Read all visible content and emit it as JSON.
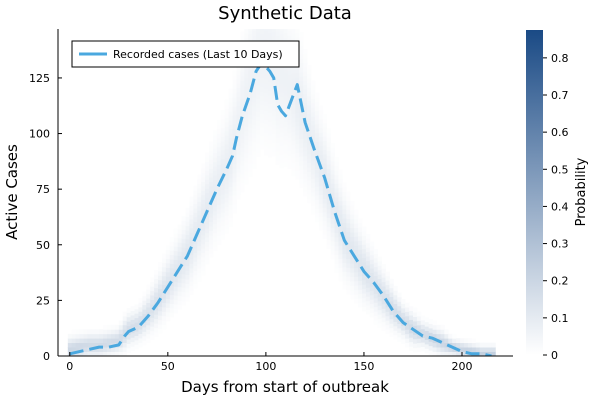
{
  "chart_data": {
    "type": "line",
    "title": "Synthetic Data",
    "xlabel": "Days from start of outbreak",
    "ylabel": "Active Cases",
    "colorbar_label": "Probability",
    "xlim": [
      -6,
      226
    ],
    "ylim": [
      0,
      147
    ],
    "x_ticks": [
      0,
      50,
      100,
      150,
      200
    ],
    "y_ticks": [
      0,
      25,
      50,
      75,
      100,
      125
    ],
    "colorbar_range": [
      0,
      0.875
    ],
    "colorbar_ticks": [
      0,
      0.1,
      0.2,
      0.3,
      0.4,
      0.5,
      0.6,
      0.7,
      0.8
    ],
    "legend_position": "top-left",
    "grid": false,
    "series": [
      {
        "name": "Recorded cases (Last 10 Days)",
        "color": "#4aa8df",
        "style": "dashed",
        "x": [
          0,
          5,
          10,
          15,
          20,
          25,
          28,
          30,
          35,
          40,
          45,
          50,
          55,
          60,
          65,
          70,
          75,
          80,
          83,
          85,
          88,
          90,
          92,
          95,
          98,
          100,
          102,
          104,
          106,
          108,
          110,
          113,
          116,
          120,
          125,
          130,
          135,
          140,
          145,
          150,
          155,
          160,
          165,
          170,
          175,
          180,
          185,
          190,
          195,
          200,
          205,
          210,
          215
        ],
        "values": [
          1,
          2,
          3,
          4,
          4,
          5,
          9,
          11,
          13,
          18,
          24,
          31,
          38,
          45,
          55,
          65,
          75,
          84,
          90,
          98,
          108,
          113,
          118,
          128,
          132,
          130,
          128,
          125,
          113,
          110,
          108,
          115,
          122,
          105,
          92,
          80,
          65,
          52,
          45,
          38,
          33,
          27,
          20,
          15,
          12,
          9,
          8,
          6,
          4,
          2,
          1,
          1,
          0
        ]
      }
    ],
    "heatmap": {
      "name": "Probability",
      "colormap": [
        "#ffffff",
        "#1a4a85"
      ],
      "center_x": [
        0,
        5,
        10,
        15,
        20,
        25,
        28,
        30,
        35,
        40,
        45,
        50,
        55,
        60,
        65,
        70,
        75,
        80,
        83,
        85,
        88,
        90,
        92,
        95,
        98,
        100,
        102,
        104,
        106,
        108,
        110,
        113,
        116,
        120,
        125,
        130,
        135,
        140,
        145,
        150,
        155,
        160,
        165,
        170,
        175,
        180,
        185,
        190,
        195,
        200,
        205,
        210,
        215
      ],
      "center_y": [
        3,
        4,
        5,
        5,
        6,
        7,
        10,
        12,
        14,
        19,
        25,
        32,
        39,
        46,
        56,
        66,
        76,
        85,
        92,
        100,
        110,
        116,
        122,
        130,
        135,
        135,
        134,
        132,
        128,
        126,
        124,
        120,
        115,
        105,
        92,
        80,
        66,
        54,
        46,
        39,
        33,
        27,
        21,
        16,
        12,
        10,
        8,
        6,
        4,
        3,
        2,
        1,
        1
      ],
      "spread": [
        3,
        3,
        3,
        3,
        3,
        3,
        4,
        4,
        4,
        5,
        6,
        7,
        8,
        9,
        10,
        11,
        12,
        13,
        14,
        15,
        17,
        18,
        19,
        20,
        20,
        21,
        21,
        20,
        20,
        19,
        18,
        17,
        16,
        15,
        13,
        12,
        11,
        10,
        9,
        8,
        7,
        6,
        5,
        4,
        4,
        3,
        3,
        3,
        2,
        2,
        2,
        2,
        2
      ],
      "peak_probability": [
        0.12,
        0.12,
        0.11,
        0.11,
        0.11,
        0.11,
        0.1,
        0.1,
        0.1,
        0.09,
        0.09,
        0.08,
        0.07,
        0.07,
        0.06,
        0.06,
        0.05,
        0.05,
        0.05,
        0.04,
        0.04,
        0.04,
        0.04,
        0.04,
        0.04,
        0.04,
        0.04,
        0.04,
        0.04,
        0.04,
        0.04,
        0.04,
        0.05,
        0.05,
        0.05,
        0.06,
        0.06,
        0.07,
        0.07,
        0.08,
        0.08,
        0.09,
        0.1,
        0.1,
        0.11,
        0.11,
        0.12,
        0.12,
        0.13,
        0.13,
        0.14,
        0.14,
        0.14
      ]
    }
  }
}
